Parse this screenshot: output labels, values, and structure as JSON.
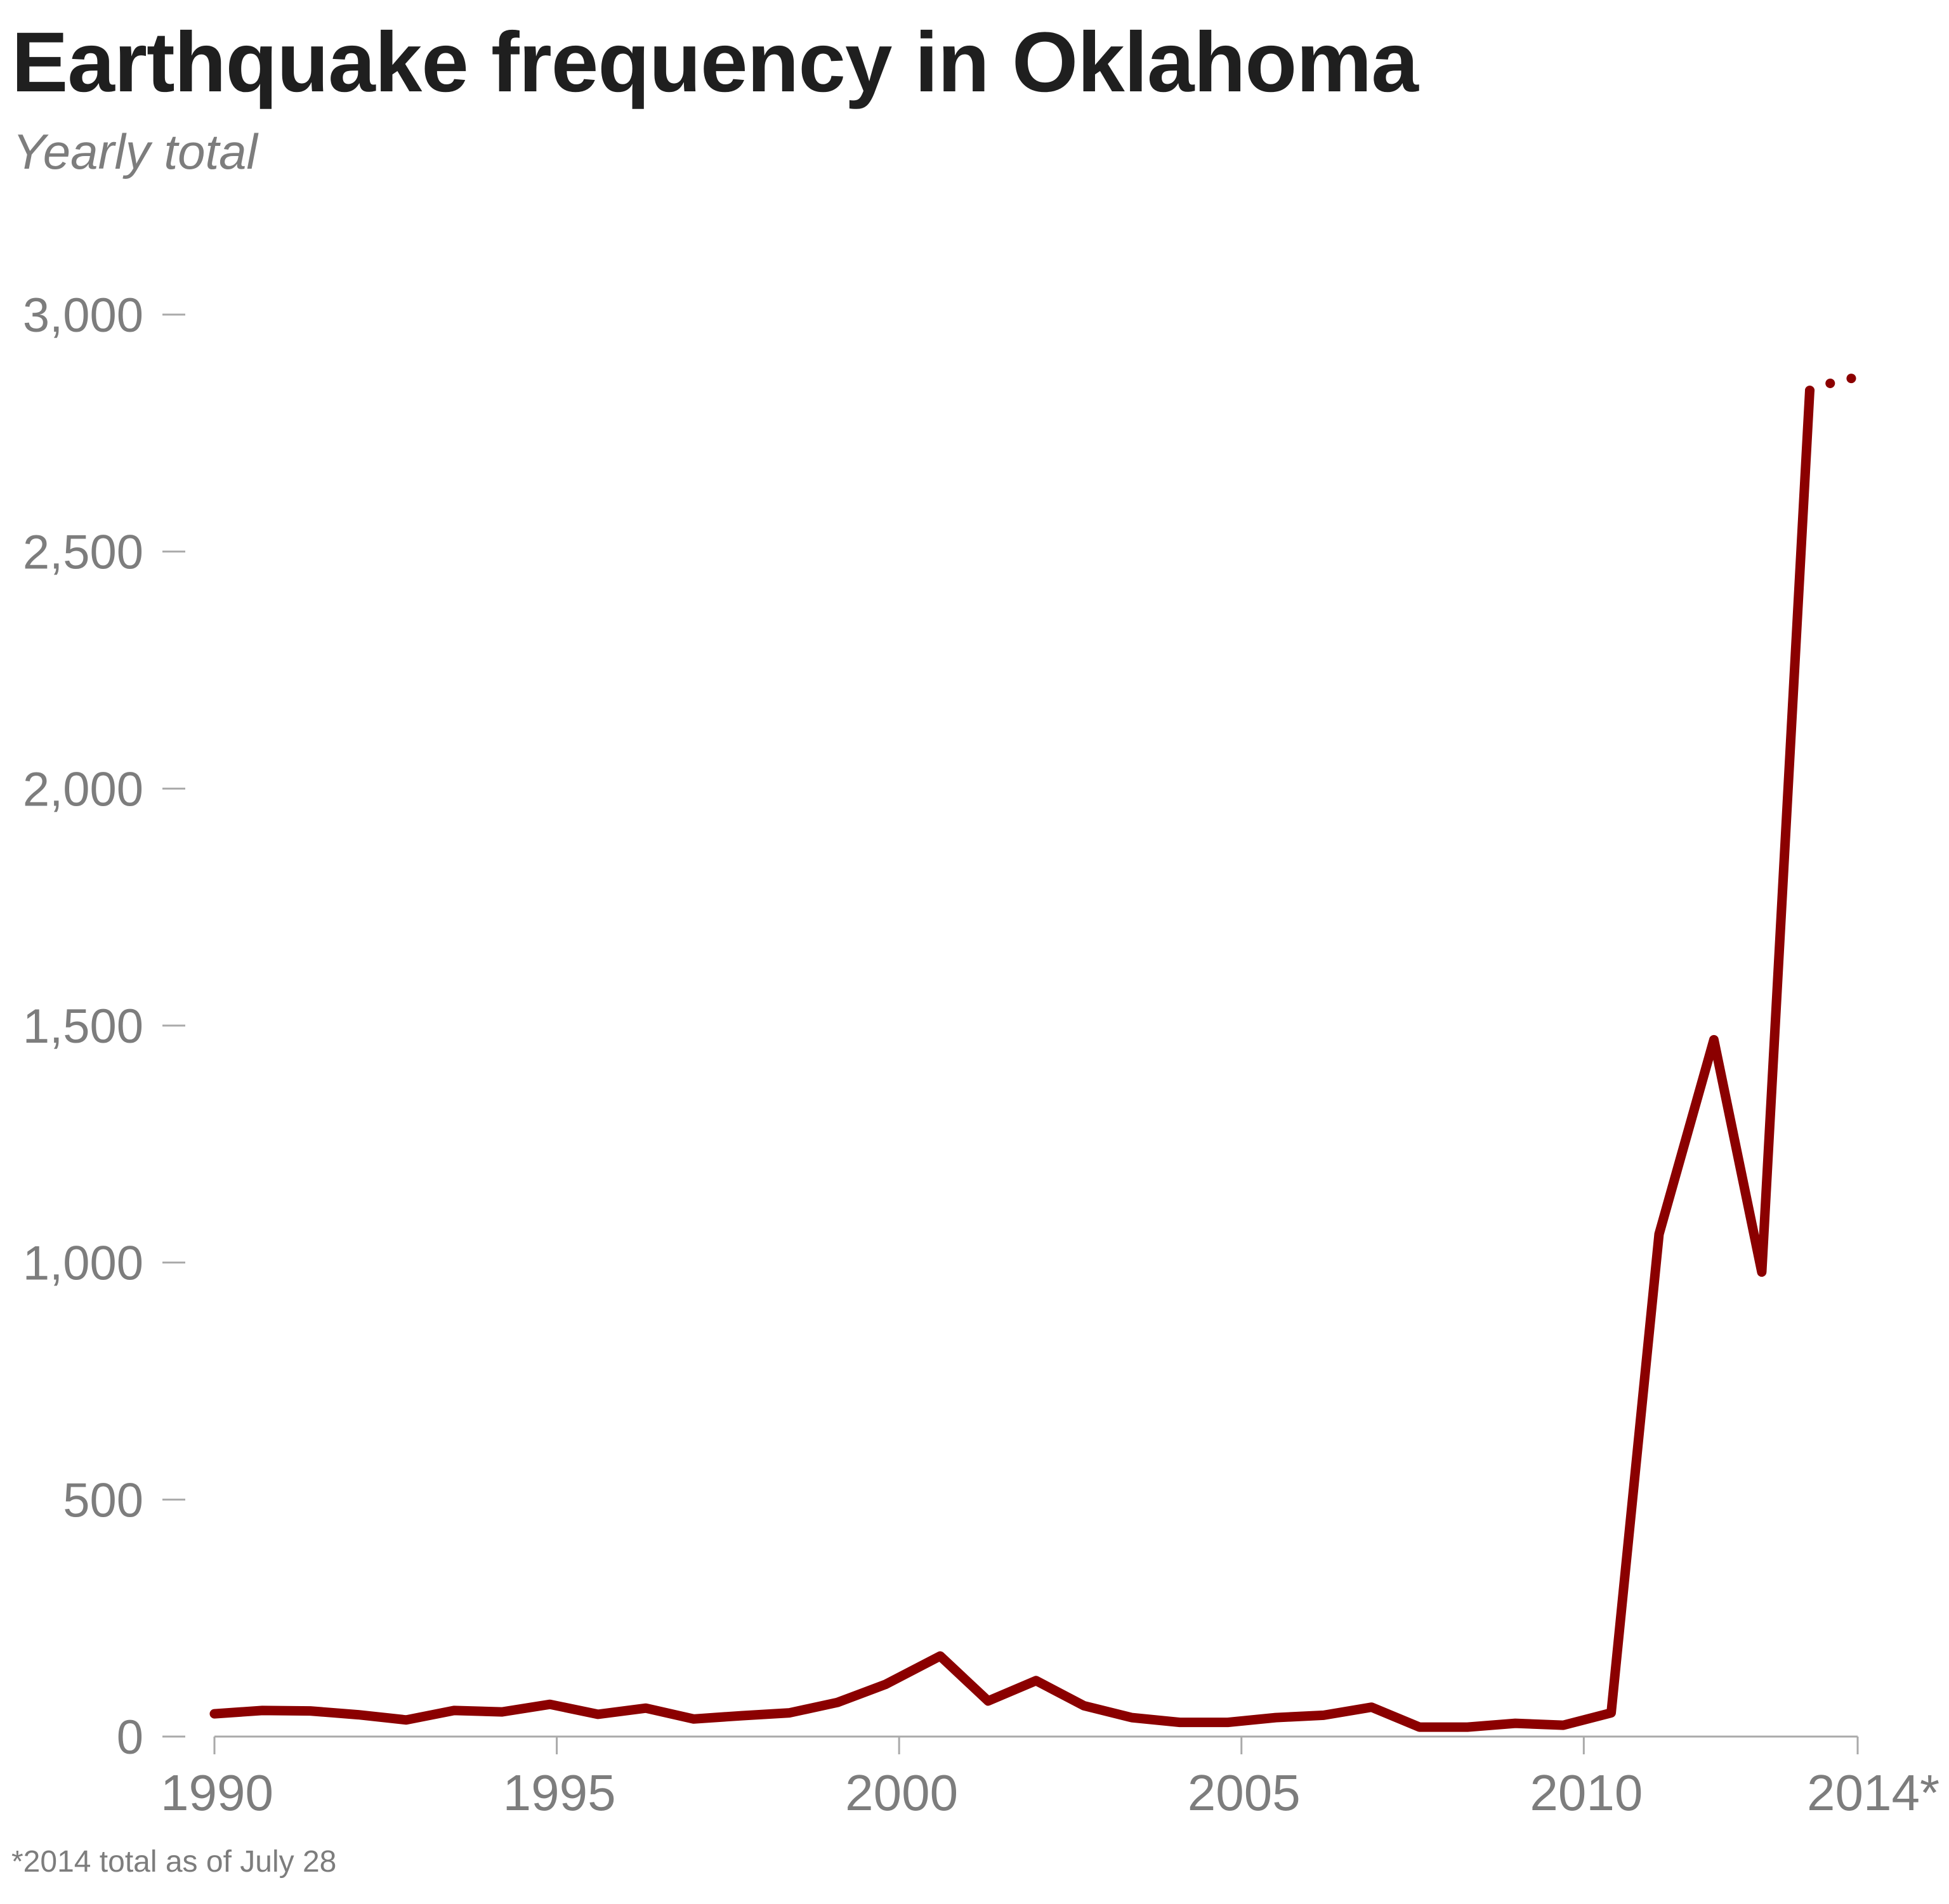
{
  "chart_data": {
    "type": "line",
    "title": "Earthquake frequency in Oklahoma",
    "subtitle": "Yearly total",
    "footnote": "*2014 total as of July 28",
    "xlabel": "",
    "ylabel": "",
    "xlim": [
      1990,
      2014
    ],
    "ylim": [
      0,
      3000
    ],
    "x_ticks": [
      1990,
      1995,
      2000,
      2005,
      2010,
      2014
    ],
    "x_tick_labels": [
      "1990",
      "1995",
      "2000",
      "2005",
      "2010",
      "2014*"
    ],
    "y_ticks": [
      0,
      500,
      1000,
      1500,
      2000,
      2500,
      3000
    ],
    "y_tick_labels": [
      "0",
      "500",
      "1,000",
      "1,500",
      "2,000",
      "2,500",
      "3,000"
    ],
    "grid": false,
    "legend": "none",
    "line_color": "#8b0000",
    "axis_color": "#aaaaaa",
    "series": [
      {
        "name": "Yearly total",
        "style": "solid",
        "x": [
          1990,
          1990.7,
          1991.4,
          1992.1,
          1992.8,
          1993.5,
          1994.2,
          1994.9,
          1995.6,
          1996.3,
          1997.0,
          1997.7,
          1998.4,
          1999.1,
          1999.8,
          2000.6,
          2001.3,
          2002.0,
          2002.7,
          2003.4,
          2004.1,
          2004.8,
          2005.5,
          2006.2,
          2006.9,
          2007.6,
          2008.3,
          2009.0,
          2009.7,
          2010.4,
          2011.1,
          2011.9,
          2012.6,
          2013.3
        ],
        "y": [
          48,
          55,
          54,
          46,
          35,
          55,
          52,
          68,
          47,
          60,
          37,
          44,
          50,
          72,
          110,
          170,
          75,
          118,
          65,
          40,
          30,
          30,
          40,
          45,
          62,
          20,
          20,
          28,
          24,
          50,
          1060,
          1470,
          980,
          2840
        ]
      },
      {
        "name": "2014 (partial, as of July 28)",
        "style": "dotted",
        "x": [
          2013.3,
          2013.6,
          2013.9,
          2014.0
        ],
        "y": [
          2840,
          2855,
          2865,
          2870
        ]
      }
    ]
  }
}
